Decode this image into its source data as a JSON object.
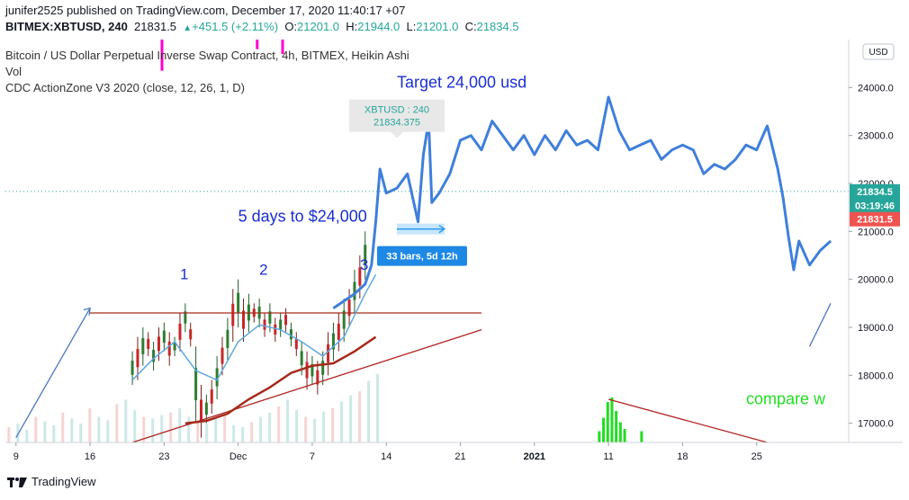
{
  "header": {
    "line1": "junifer2525 published on TradingView.com, December 17, 2020 11:40:17 +07",
    "symbol": "BITMEX:XBTUSD, 240",
    "price": "21831.5",
    "change": "+451.5 (+2.11%)",
    "o_label": "O:",
    "o": "21201.0",
    "h_label": "H:",
    "h": "21944.0",
    "l_label": "L:",
    "l": "21201.0",
    "c_label": "C:",
    "c": "21834.5"
  },
  "legend": [
    "Bitcoin / US Dollar Perpetual Inverse Swap Contract, 4h, BITMEX, Heikin Ashi",
    "Vol",
    "CDC ActionZone V3 2020 (close, 12, 26, 1, D)"
  ],
  "footer": {
    "brand": "TradingView"
  },
  "colors": {
    "price": "#3f7fdb",
    "ema_fast": "#5fa8e0",
    "ema_slow": "#a52a1a",
    "up": "#26a69a",
    "down": "#ef5350",
    "annot": "#1a2fd0",
    "green": "#22dd22",
    "magenta": "#ff00cc",
    "trend": "#b22222"
  },
  "chart_data": {
    "type": "line",
    "title": "Bitcoin / US Dollar Perpetual Inverse Swap Contract, 4h, BITMEX, Heikin Ashi",
    "ylim": [
      16600,
      25000
    ],
    "y_ticks": [
      17000,
      18000,
      19000,
      20000,
      21000,
      22000,
      23000,
      24000
    ],
    "y_tick_labels": [
      "17000.0",
      "18000.0",
      "19000.0",
      "20000.0",
      "21000.0",
      "22000.0",
      "23000.0",
      "24000.0"
    ],
    "y_scale_label": "USD",
    "x_ticks": [
      "9",
      "16",
      "23",
      "Dec",
      "7",
      "14",
      "21",
      "2021",
      "11",
      "18",
      "25"
    ],
    "x_tick_idx": [
      1,
      8,
      15,
      22,
      29,
      36,
      43,
      50,
      57,
      64,
      71
    ],
    "x_domain": [
      0,
      78
    ],
    "price_badges": [
      {
        "label": "21834.5",
        "value": 21834.5,
        "color": "#26a69a"
      },
      {
        "label": "03:19:46",
        "value": 21545,
        "color": "#26a69a"
      },
      {
        "label": "21831.5",
        "value": 21255,
        "color": "#ef5350"
      }
    ],
    "hist_candles": [
      [
        12,
        17800,
        18500
      ],
      [
        12.5,
        17900,
        18800
      ],
      [
        13,
        18200,
        19000
      ],
      [
        13.5,
        18400,
        18900
      ],
      [
        14,
        18100,
        18700
      ],
      [
        14.5,
        18300,
        19000
      ],
      [
        15,
        18500,
        19100
      ],
      [
        15.5,
        18200,
        18900
      ],
      [
        16,
        18400,
        18800
      ],
      [
        16.5,
        18500,
        19300
      ],
      [
        17,
        18900,
        19500
      ],
      [
        17.5,
        18600,
        19100
      ],
      [
        18,
        17000,
        18600
      ],
      [
        18.5,
        16700,
        17800
      ],
      [
        19,
        17000,
        17600
      ],
      [
        19.5,
        17200,
        17900
      ],
      [
        20,
        17500,
        18400
      ],
      [
        20.5,
        18000,
        18800
      ],
      [
        21,
        18300,
        19200
      ],
      [
        21.5,
        18700,
        19800
      ],
      [
        22,
        19000,
        20000
      ],
      [
        22.5,
        18700,
        19600
      ],
      [
        23,
        18900,
        19700
      ],
      [
        23.5,
        19100,
        19500
      ],
      [
        24,
        19000,
        19600
      ],
      [
        24.5,
        18800,
        19300
      ],
      [
        25,
        18900,
        19500
      ],
      [
        25.5,
        18700,
        19200
      ],
      [
        26,
        18800,
        19300
      ],
      [
        26.5,
        18900,
        19400
      ],
      [
        27,
        18600,
        19100
      ],
      [
        27.5,
        18400,
        18900
      ],
      [
        28,
        18000,
        18700
      ],
      [
        28.5,
        17700,
        18500
      ],
      [
        29,
        17800,
        18400
      ],
      [
        29.5,
        17600,
        18300
      ],
      [
        30,
        17800,
        18500
      ],
      [
        30.5,
        18000,
        18900
      ],
      [
        31,
        18300,
        19100
      ],
      [
        31.5,
        18500,
        19300
      ],
      [
        32,
        18700,
        19600
      ],
      [
        32.5,
        19000,
        19800
      ],
      [
        33,
        19300,
        20200
      ],
      [
        33.5,
        19600,
        20500
      ],
      [
        34,
        20000,
        21000
      ]
    ],
    "ema_fast": [
      [
        12,
        17900
      ],
      [
        14,
        18350
      ],
      [
        16,
        18700
      ],
      [
        18,
        18100
      ],
      [
        20,
        17900
      ],
      [
        22,
        18700
      ],
      [
        24,
        19050
      ],
      [
        26,
        18950
      ],
      [
        28,
        18700
      ],
      [
        30,
        18400
      ],
      [
        32,
        18800
      ],
      [
        34,
        19700
      ],
      [
        35,
        20100
      ]
    ],
    "ema_slow": [
      [
        17,
        17000
      ],
      [
        19,
        17050
      ],
      [
        21,
        17200
      ],
      [
        23,
        17500
      ],
      [
        25,
        17750
      ],
      [
        27,
        18050
      ],
      [
        29,
        18200
      ],
      [
        31,
        18250
      ],
      [
        33,
        18500
      ],
      [
        35,
        18800
      ]
    ],
    "hist_volume": [
      0.18,
      0.22,
      0.15,
      0.3,
      0.25,
      0.2,
      0.35,
      0.28,
      0.22,
      0.4,
      0.3,
      0.26,
      0.45,
      0.5,
      0.38,
      0.3,
      0.28,
      0.32,
      0.35,
      0.4,
      0.3,
      0.25,
      0.22,
      0.28,
      0.33,
      0.2,
      0.18,
      0.24,
      0.3,
      0.35,
      0.42,
      0.5,
      0.38,
      0.3,
      0.28,
      0.36,
      0.4,
      0.48,
      0.55,
      0.6,
      0.72,
      0.8
    ],
    "projected_series": [
      [
        31,
        19400
      ],
      [
        33,
        19700
      ],
      [
        34,
        19900
      ],
      [
        34.6,
        20300
      ],
      [
        35,
        21200
      ],
      [
        35.4,
        22300
      ],
      [
        36,
        21800
      ],
      [
        37,
        21900
      ],
      [
        38,
        22200
      ],
      [
        39,
        21200
      ],
      [
        39.5,
        22600
      ],
      [
        40,
        23300
      ],
      [
        40.3,
        21600
      ],
      [
        41,
        21800
      ],
      [
        42,
        22200
      ],
      [
        43,
        22900
      ],
      [
        44,
        23000
      ],
      [
        45,
        22700
      ],
      [
        46,
        23300
      ],
      [
        47,
        23000
      ],
      [
        48,
        22700
      ],
      [
        49,
        23000
      ],
      [
        50,
        22600
      ],
      [
        51,
        23000
      ],
      [
        52,
        22700
      ],
      [
        53,
        23100
      ],
      [
        54,
        22800
      ],
      [
        55,
        22900
      ],
      [
        56,
        22700
      ],
      [
        57,
        23800
      ],
      [
        58,
        23100
      ],
      [
        59,
        22700
      ],
      [
        60,
        22800
      ],
      [
        61,
        22900
      ],
      [
        62,
        22500
      ],
      [
        63,
        22700
      ],
      [
        64,
        22800
      ],
      [
        65,
        22700
      ],
      [
        66,
        22200
      ],
      [
        67,
        22400
      ],
      [
        68,
        22300
      ],
      [
        69,
        22500
      ],
      [
        70,
        22800
      ],
      [
        71,
        22700
      ],
      [
        72,
        23200
      ],
      [
        73,
        22300
      ],
      [
        73.5,
        21700
      ],
      [
        74,
        20900
      ],
      [
        74.5,
        20200
      ],
      [
        75,
        20800
      ],
      [
        76,
        20300
      ],
      [
        77,
        20600
      ],
      [
        78,
        20800
      ]
    ],
    "signal_lines": [
      {
        "from": [
          1,
          16700
        ],
        "to": [
          8,
          19400
        ],
        "color": "#4a76c6"
      },
      {
        "from": [
          8,
          19300
        ],
        "to": [
          45,
          19300
        ],
        "color": "#a52a1a"
      },
      {
        "from": [
          12,
          16600
        ],
        "to": [
          45,
          18950
        ],
        "color": "#b22222"
      },
      {
        "from": [
          57,
          17500
        ],
        "to": [
          72,
          16600
        ],
        "color": "#b22222"
      },
      {
        "from": [
          76,
          18600
        ],
        "to": [
          78,
          19500
        ],
        "color": "#4a76c6"
      }
    ],
    "annotations": [
      {
        "text": "1",
        "x": 16.5,
        "y": 20000
      },
      {
        "text": "2",
        "x": 24,
        "y": 20100
      },
      {
        "text": "3",
        "x": 33.5,
        "y": 20200
      },
      {
        "text": "Target 24,000 usd",
        "x": 37,
        "y": 24000
      },
      {
        "text": "5 days to $24,000",
        "x": 22,
        "y": 21200
      },
      {
        "text": "compare w",
        "x": 70,
        "y": 17400
      }
    ],
    "measure": {
      "label": "33 bars, 5d 12h",
      "from": 37,
      "to": 41.5,
      "value": 21050
    },
    "tooltip": {
      "line1": "XBTUSD : 240",
      "line2": "21834.375",
      "x": 37,
      "value": 23000
    },
    "current_price": 21834.5,
    "green_spikes": [
      [
        56,
        0.25
      ],
      [
        56.4,
        0.55
      ],
      [
        56.8,
        0.9
      ],
      [
        57.2,
        1.0
      ],
      [
        57.6,
        0.7
      ],
      [
        58,
        0.45
      ],
      [
        58.4,
        0.3
      ],
      [
        60,
        0.25
      ]
    ],
    "magenta_spikes": [
      [
        14.8,
        25500,
        24350
      ],
      [
        23.8,
        25500,
        24800
      ],
      [
        26.2,
        25500,
        24700
      ]
    ]
  }
}
